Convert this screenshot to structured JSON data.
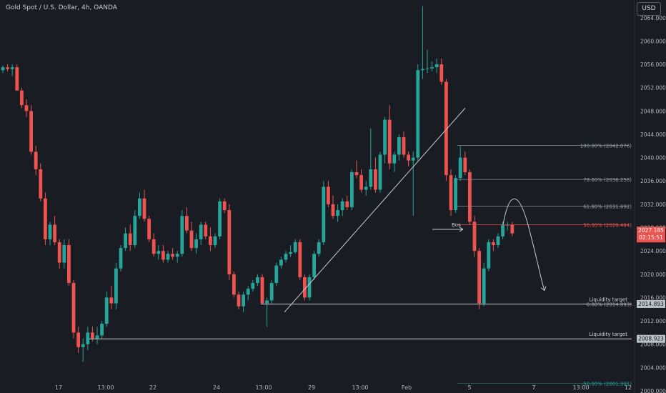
{
  "header": {
    "title": "Gold Spot / U.S. Dollar, 4h, OANDA",
    "currency_button": "USD"
  },
  "colors": {
    "bull": "#26a69a",
    "bear": "#ef5350",
    "background": "#1a1c23",
    "text": "#b2b5be",
    "line": "#c8ccd4"
  },
  "chart_data": {
    "type": "candlestick",
    "ylim": [
      2000,
      2066
    ],
    "y_ticks": [
      "2000.000",
      "2004.000",
      "2008.000",
      "2012.000",
      "2016.000",
      "2020.000",
      "2024.000",
      "2028.000",
      "2032.000",
      "2036.000",
      "2040.000",
      "2044.000",
      "2048.000",
      "2052.000",
      "2056.000",
      "2060.000",
      "2064.000"
    ],
    "x_ticks": [
      "17",
      "13:00",
      "22",
      "24",
      "13:00",
      "29",
      "13:00",
      "Feb",
      "5",
      "7",
      "13:00",
      "12"
    ],
    "candles": [
      [
        2055.0,
        2055.8,
        2054.5,
        2055.5
      ],
      [
        2055.5,
        2056.0,
        2054.8,
        2055.2
      ],
      [
        2055.2,
        2056.0,
        2054.0,
        2055.5
      ],
      [
        2055.5,
        2056.0,
        2052.0,
        2051.5
      ],
      [
        2051.5,
        2052.0,
        2048.5,
        2049.0
      ],
      [
        2049.0,
        2050.0,
        2047.0,
        2048.0
      ],
      [
        2048.0,
        2049.0,
        2040.5,
        2041.0
      ],
      [
        2041.0,
        2042.0,
        2037.0,
        2038.0
      ],
      [
        2038.0,
        2039.0,
        2032.5,
        2033.0
      ],
      [
        2033.0,
        2034.0,
        2025.0,
        2026.0
      ],
      [
        2026.0,
        2029.0,
        2025.0,
        2028.5
      ],
      [
        2028.5,
        2030.0,
        2025.0,
        2025.5
      ],
      [
        2025.5,
        2026.0,
        2021.0,
        2022.0
      ],
      [
        2022.0,
        2026.0,
        2021.0,
        2025.0
      ],
      [
        2025.0,
        2026.0,
        2018.0,
        2018.5
      ],
      [
        2018.5,
        2019.0,
        2009.0,
        2010.0
      ],
      [
        2010.0,
        2011.0,
        2006.5,
        2007.5
      ],
      [
        2007.5,
        2009.0,
        2005.0,
        2008.0
      ],
      [
        2008.0,
        2011.0,
        2007.0,
        2010.0
      ],
      [
        2010.0,
        2011.0,
        2008.5,
        2009.0
      ],
      [
        2009.0,
        2011.0,
        2008.0,
        2009.5
      ],
      [
        2009.5,
        2012.0,
        2009.0,
        2011.5
      ],
      [
        2011.5,
        2017.0,
        2011.0,
        2016.0
      ],
      [
        2016.0,
        2018.0,
        2014.0,
        2015.0
      ],
      [
        2015.0,
        2022.0,
        2014.0,
        2021.0
      ],
      [
        2021.0,
        2025.0,
        2020.5,
        2024.5
      ],
      [
        2024.5,
        2028.0,
        2024.0,
        2027.0
      ],
      [
        2027.0,
        2028.5,
        2024.0,
        2025.0
      ],
      [
        2025.0,
        2031.0,
        2024.5,
        2030.0
      ],
      [
        2030.0,
        2034.0,
        2029.5,
        2033.0
      ],
      [
        2033.0,
        2034.5,
        2029.0,
        2029.5
      ],
      [
        2029.5,
        2030.0,
        2025.5,
        2026.0
      ],
      [
        2026.0,
        2027.0,
        2023.0,
        2023.5
      ],
      [
        2023.5,
        2025.0,
        2022.5,
        2024.0
      ],
      [
        2024.0,
        2025.0,
        2022.0,
        2022.5
      ],
      [
        2022.5,
        2024.0,
        2022.0,
        2023.5
      ],
      [
        2023.5,
        2024.5,
        2022.5,
        2023.0
      ],
      [
        2023.0,
        2024.0,
        2022.0,
        2023.5
      ],
      [
        2023.5,
        2031.0,
        2023.0,
        2030.0
      ],
      [
        2030.0,
        2031.5,
        2027.0,
        2027.5
      ],
      [
        2027.5,
        2029.0,
        2024.0,
        2024.5
      ],
      [
        2024.5,
        2027.0,
        2023.5,
        2026.0
      ],
      [
        2026.0,
        2029.0,
        2025.0,
        2028.5
      ],
      [
        2028.5,
        2029.0,
        2026.0,
        2026.5
      ],
      [
        2026.5,
        2028.0,
        2024.0,
        2025.0
      ],
      [
        2025.0,
        2027.0,
        2024.5,
        2026.5
      ],
      [
        2026.5,
        2033.0,
        2026.0,
        2032.5
      ],
      [
        2032.5,
        2033.0,
        2030.5,
        2031.0
      ],
      [
        2031.0,
        2032.0,
        2019.0,
        2020.0
      ],
      [
        2020.0,
        2020.5,
        2016.0,
        2016.5
      ],
      [
        2016.5,
        2017.0,
        2014.0,
        2014.5
      ],
      [
        2014.5,
        2017.0,
        2013.5,
        2016.5
      ],
      [
        2016.5,
        2018.0,
        2015.5,
        2017.5
      ],
      [
        2017.5,
        2019.0,
        2017.0,
        2018.5
      ],
      [
        2018.5,
        2020.0,
        2018.0,
        2019.5
      ],
      [
        2019.5,
        2020.0,
        2015.0,
        2015.0
      ],
      [
        2015.0,
        2016.0,
        2011.0,
        2015.5
      ],
      [
        2015.5,
        2019.0,
        2015.0,
        2018.5
      ],
      [
        2018.5,
        2022.0,
        2018.0,
        2021.5
      ],
      [
        2021.5,
        2023.0,
        2021.0,
        2022.5
      ],
      [
        2022.5,
        2024.0,
        2022.0,
        2023.5
      ],
      [
        2023.5,
        2025.0,
        2023.0,
        2023.8
      ],
      [
        2023.8,
        2026.0,
        2023.5,
        2025.5
      ],
      [
        2025.5,
        2026.0,
        2019.0,
        2019.5
      ],
      [
        2019.5,
        2020.0,
        2015.5,
        2016.0
      ],
      [
        2016.0,
        2020.0,
        2015.5,
        2019.5
      ],
      [
        2019.5,
        2024.0,
        2019.0,
        2023.5
      ],
      [
        2023.5,
        2026.0,
        2023.0,
        2025.5
      ],
      [
        2025.5,
        2036.0,
        2025.0,
        2035.0
      ],
      [
        2035.0,
        2036.0,
        2031.5,
        2032.0
      ],
      [
        2032.0,
        2033.5,
        2029.5,
        2030.0
      ],
      [
        2030.0,
        2032.0,
        2029.0,
        2031.0
      ],
      [
        2031.0,
        2033.0,
        2030.0,
        2032.5
      ],
      [
        2032.5,
        2033.5,
        2031.0,
        2031.5
      ],
      [
        2031.5,
        2038.0,
        2031.0,
        2037.5
      ],
      [
        2037.5,
        2039.5,
        2036.5,
        2037.0
      ],
      [
        2037.0,
        2038.0,
        2034.0,
        2034.5
      ],
      [
        2034.5,
        2036.0,
        2033.5,
        2035.0
      ],
      [
        2035.0,
        2045.0,
        2034.5,
        2038.0
      ],
      [
        2038.0,
        2040.0,
        2034.0,
        2034.5
      ],
      [
        2034.5,
        2041.0,
        2034.0,
        2040.5
      ],
      [
        2040.5,
        2047.0,
        2039.0,
        2046.5
      ],
      [
        2046.5,
        2049.0,
        2038.0,
        2039.0
      ],
      [
        2039.0,
        2041.0,
        2037.5,
        2040.5
      ],
      [
        2040.5,
        2044.0,
        2039.5,
        2043.5
      ],
      [
        2043.5,
        2044.5,
        2040.0,
        2040.5
      ],
      [
        2040.5,
        2041.0,
        2038.5,
        2039.5
      ],
      [
        2039.5,
        2041.0,
        2030.0,
        2040.0
      ],
      [
        2040.0,
        2056.0,
        2039.5,
        2055.0
      ],
      [
        2055.0,
        2066.0,
        2053.5,
        2055.2
      ],
      [
        2055.2,
        2058.5,
        2054.5,
        2055.3
      ],
      [
        2055.3,
        2056.5,
        2054.8,
        2055.5
      ],
      [
        2055.5,
        2057.0,
        2054.5,
        2056.0
      ],
      [
        2056.0,
        2057.0,
        2052.5,
        2053.0
      ],
      [
        2053.0,
        2053.5,
        2036.0,
        2037.0
      ],
      [
        2037.0,
        2038.0,
        2030.0,
        2031.0
      ],
      [
        2031.0,
        2037.0,
        2030.5,
        2036.5
      ],
      [
        2036.5,
        2042.0,
        2036.0,
        2040.0
      ],
      [
        2040.0,
        2041.0,
        2037.0,
        2037.5
      ],
      [
        2037.5,
        2038.0,
        2028.5,
        2029.0
      ],
      [
        2029.0,
        2030.0,
        2023.0,
        2024.0
      ],
      [
        2024.0,
        2024.5,
        2014.0,
        2015.0
      ],
      [
        2015.0,
        2022.0,
        2014.5,
        2021.0
      ],
      [
        2021.0,
        2026.0,
        2020.5,
        2025.5
      ],
      [
        2025.5,
        2026.0,
        2024.0,
        2025.0
      ],
      [
        2025.0,
        2027.0,
        2024.5,
        2026.5
      ],
      [
        2026.5,
        2029.0,
        2026.0,
        2028.5
      ],
      [
        2028.5,
        2029.0,
        2027.5,
        2028.5
      ],
      [
        2028.5,
        2029.0,
        2026.5,
        2027.0
      ]
    ],
    "fibonacci": [
      {
        "label": "100.00% (2042.076)",
        "value": 2042.076
      },
      {
        "label": "78.60% (2036.258)",
        "value": 2036.258
      },
      {
        "label": "61.80% (2031.692)",
        "value": 2031.692
      },
      {
        "label": "50.00% (2028.484)",
        "value": 2028.484
      },
      {
        "label": "0.00% (2014.893)",
        "value": 2014.893
      },
      {
        "label": "-50.00% (2001.301)",
        "value": 2001.301
      }
    ],
    "annotations": {
      "bos_label": "Bos",
      "liquidity_target_1": "Liquidity target",
      "liquidity_target_2": "Liquidity target",
      "level_1": 2014.893,
      "level_2": 2008.923
    },
    "price_labels": [
      {
        "value": 2027.185,
        "text": "2027.185",
        "sub": "02:15:51",
        "color": "#ef5350"
      },
      {
        "value": 2014.893,
        "text": "2014.893",
        "color": "#b8c2c8"
      },
      {
        "value": 2008.923,
        "text": "2008.923",
        "color": "#b8c2c8"
      }
    ]
  }
}
